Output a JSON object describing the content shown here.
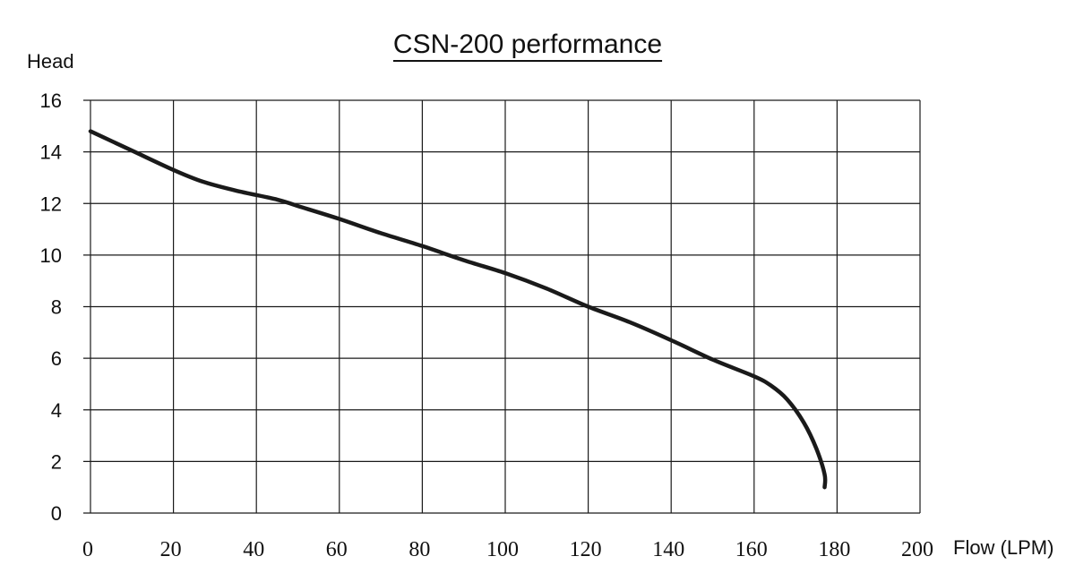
{
  "chart_data": {
    "type": "line",
    "title": "CSN-200 performance",
    "xlabel": "Flow (LPM)",
    "ylabel": "Head",
    "xlim": [
      0,
      200
    ],
    "ylim": [
      0,
      16
    ],
    "x_ticks": [
      "0",
      "20",
      "40",
      "60",
      "80",
      "100",
      "120",
      "140",
      "160",
      "180",
      "200"
    ],
    "y_ticks": [
      "0",
      "2",
      "4",
      "6",
      "8",
      "10",
      "12",
      "14",
      "16"
    ],
    "grid": true,
    "colors": {
      "line": "#1a1a1a",
      "grid": "#1a1a1a",
      "text": "#111111"
    },
    "series": [
      {
        "x": [
          0,
          10,
          20,
          27,
          35,
          45,
          50,
          60,
          70,
          80,
          90,
          100,
          110,
          120,
          130,
          140,
          150,
          160,
          164,
          168,
          172,
          175,
          177,
          177
        ],
        "y": [
          14.8,
          14.05,
          13.3,
          12.85,
          12.5,
          12.15,
          11.9,
          11.4,
          10.85,
          10.35,
          9.8,
          9.3,
          8.7,
          8.0,
          7.4,
          6.7,
          5.95,
          5.3,
          4.95,
          4.4,
          3.5,
          2.5,
          1.5,
          1.0
        ]
      }
    ]
  }
}
